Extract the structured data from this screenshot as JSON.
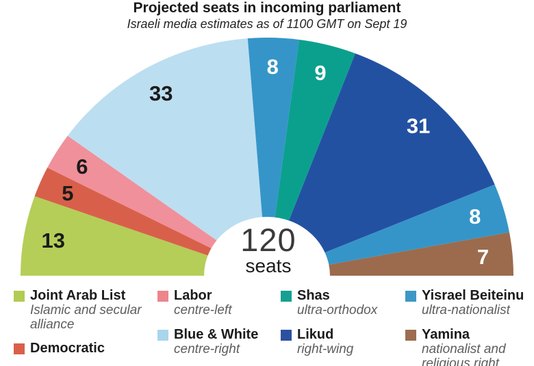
{
  "header": {
    "title": "Projected seats in incoming parliament",
    "subtitle": "Israeli media estimates as of 1100 GMT on Sept 19"
  },
  "chart_data": {
    "type": "parliament-hemicycle",
    "title": "Projected seats in incoming parliament",
    "subtitle": "Israeli media estimates as of 1100 GMT on Sept 19",
    "total_seats": 120,
    "center_label": {
      "value": "120",
      "unit": "seats"
    },
    "orientation": "semicircle, wedges drawn left to right",
    "series": [
      {
        "name": "Joint Arab List",
        "seats": 13,
        "color": "#b5ce58",
        "label_color": "#1b1b1b"
      },
      {
        "name": "Democratic",
        "seats": 5,
        "color": "#d8604a",
        "label_color": "#1b1b1b"
      },
      {
        "name": "Labor",
        "seats": 6,
        "color": "#f0909a",
        "label_color": "#1b1b1b"
      },
      {
        "name": "Blue & White",
        "seats": 33,
        "color": "#bcdef1",
        "label_color": "#1b1b1b"
      },
      {
        "name": "",
        "seats": 8,
        "color": "#3595c8",
        "label_color": "#ffffff"
      },
      {
        "name": "Shas",
        "seats": 9,
        "color": "#0ba08e",
        "label_color": "#ffffff"
      },
      {
        "name": "Likud",
        "seats": 31,
        "color": "#2351a2",
        "label_color": "#ffffff"
      },
      {
        "name": "Yisrael Beiteinu",
        "seats": 8,
        "color": "#3595c8",
        "label_color": "#ffffff"
      },
      {
        "name": "Yamina",
        "seats": 7,
        "color": "#9c6b4d",
        "label_color": "#ffffff"
      }
    ]
  },
  "legend": {
    "columns": [
      [
        {
          "name": "Joint Arab List",
          "desc": "Islamic and secular alliance",
          "color": "#b2cb52"
        },
        {
          "name": "Democratic",
          "desc": "",
          "color": "#d8604a"
        }
      ],
      [
        {
          "name": "Labor",
          "desc": "centre-left",
          "color": "#ec858c"
        },
        {
          "name": "Blue & White",
          "desc": "centre-right",
          "color": "#a9d6ed"
        }
      ],
      [
        {
          "name": "Shas",
          "desc": "ultra-orthodox",
          "color": "#16a092"
        },
        {
          "name": "Likud",
          "desc": "right-wing",
          "color": "#2c50a0"
        }
      ],
      [
        {
          "name": "Yisrael Beiteinu",
          "desc": "ultra-nationalist",
          "color": "#3d97c6"
        },
        {
          "name": "Yamina",
          "desc": "nationalist and religious right",
          "color": "#9c6d50"
        }
      ]
    ]
  }
}
